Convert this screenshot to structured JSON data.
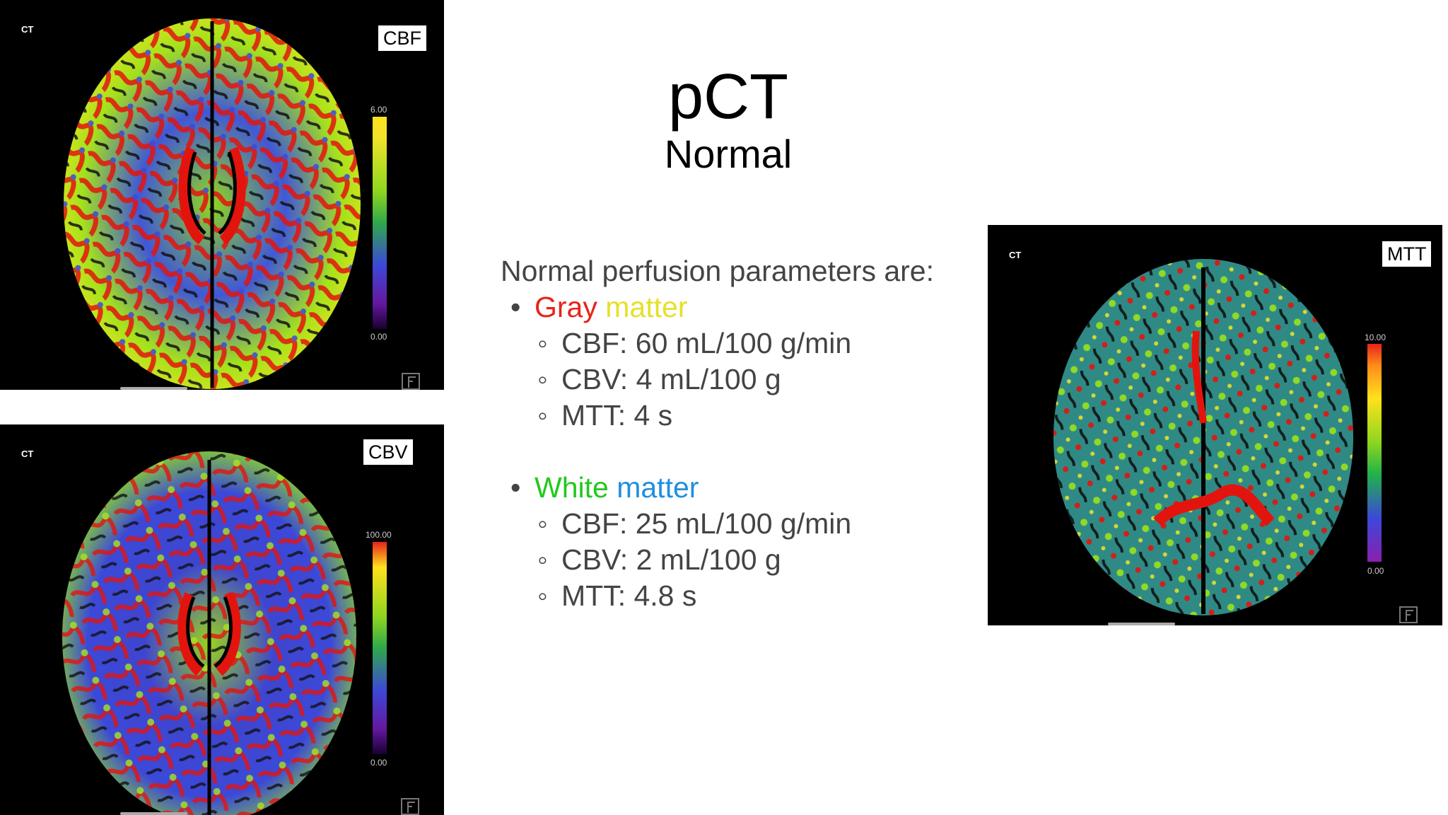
{
  "slide": {
    "title": "pCT",
    "subtitle": "Normal"
  },
  "text": {
    "intro": "Normal perfusion parameters are:",
    "gray": {
      "word1": "Gray",
      "word2": "matter",
      "color1": "#e8231a",
      "color2": "#e6e02a",
      "items": [
        "CBF: 60 mL/100 g/min",
        "CBV: 4 mL/100 g",
        "MTT: 4 s"
      ]
    },
    "white": {
      "word1": "White",
      "word2": "matter",
      "color1": "#22c91b",
      "color2": "#1f8fe0",
      "items": [
        "CBF: 25 mL/100 g/min",
        "CBV: 2 mL/100 g",
        "MTT: 4.8 s"
      ]
    }
  },
  "panels": {
    "cbf": {
      "tag": "CT",
      "label": "CBF",
      "scale_max": "6.00",
      "scale_min": "0.00"
    },
    "cbv": {
      "tag": "CT",
      "label": "CBV",
      "scale_max": "100.00",
      "scale_min": "0.00"
    },
    "mtt": {
      "tag": "CT",
      "label": "MTT",
      "scale_max": "10.00",
      "scale_min": "0.00"
    }
  },
  "colors": {
    "panel_bg": "#000000",
    "map_blue": "#3c48d8",
    "map_green": "#9be21a",
    "map_red": "#e3140d",
    "mtt_teal": "#2f8a86"
  }
}
